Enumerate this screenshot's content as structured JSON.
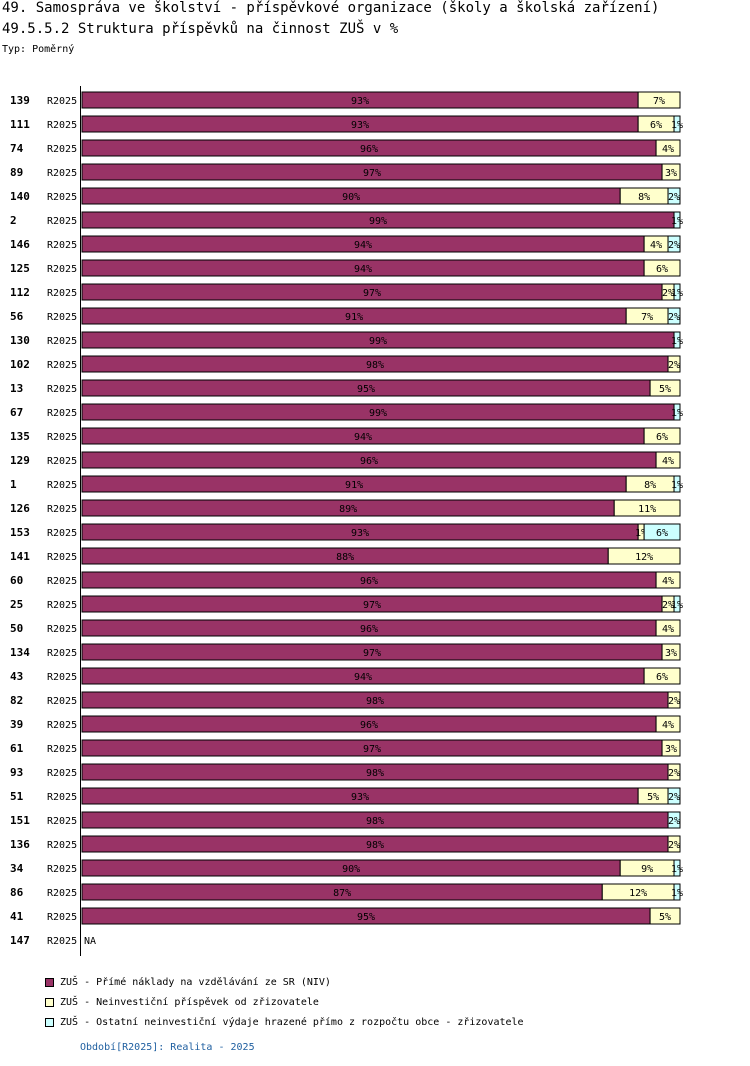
{
  "header": {
    "title": "49. Samospráva ve školství - příspěvkové organizace (školy a školská zařízení)",
    "subtitle": "49.5.5.2 Struktura příspěvků na činnost ZUŠ v %",
    "type_label": "Typ: Poměrný"
  },
  "colors": {
    "niv": "#993366",
    "neinv": "#ffffcc",
    "ostatni": "#ccffff"
  },
  "chart_data": {
    "type": "bar",
    "orientation": "horizontal",
    "stacked": "percent",
    "period_label": "R2025",
    "na_label": "NA",
    "categories": [
      "139",
      "111",
      "74",
      "89",
      "140",
      "2",
      "146",
      "125",
      "112",
      "56",
      "130",
      "102",
      "13",
      "67",
      "135",
      "129",
      "1",
      "126",
      "153",
      "141",
      "60",
      "25",
      "50",
      "134",
      "43",
      "82",
      "39",
      "61",
      "93",
      "51",
      "151",
      "136",
      "34",
      "86",
      "41",
      "147"
    ],
    "series": [
      {
        "name": "ZUŠ - Přímé náklady na vzdělávání ze SR (NIV)",
        "color_key": "niv",
        "values": [
          93,
          93,
          96,
          97,
          90,
          99,
          94,
          94,
          97,
          91,
          99,
          98,
          95,
          99,
          94,
          96,
          91,
          89,
          93,
          88,
          96,
          97,
          96,
          97,
          94,
          98,
          96,
          97,
          98,
          93,
          98,
          98,
          90,
          87,
          95,
          null
        ]
      },
      {
        "name": "ZUŠ - Neinvestiční příspěvek od zřizovatele",
        "color_key": "neinv",
        "values": [
          7,
          6,
          4,
          3,
          8,
          0,
          4,
          6,
          2,
          7,
          0,
          2,
          5,
          0,
          6,
          4,
          8,
          11,
          1,
          12,
          4,
          2,
          4,
          3,
          6,
          2,
          4,
          3,
          2,
          5,
          0,
          2,
          9,
          12,
          5,
          null
        ]
      },
      {
        "name": "ZUŠ - Ostatní neinvestiční výdaje hrazené přímo z rozpočtu obce - zřizovatele",
        "color_key": "ostatni",
        "values": [
          0,
          1,
          0,
          0,
          2,
          1,
          2,
          0,
          1,
          2,
          1,
          0,
          0,
          1,
          0,
          0,
          1,
          0,
          6,
          0,
          0,
          1,
          0,
          0,
          0,
          0,
          0,
          0,
          0,
          2,
          2,
          0,
          1,
          1,
          0,
          null
        ]
      }
    ],
    "xlim": [
      0,
      100
    ]
  },
  "legend": [
    {
      "label": "ZUŠ - Přímé náklady na vzdělávání ze SR (NIV)",
      "color_key": "niv"
    },
    {
      "label": "ZUŠ - Neinvestiční příspěvek od zřizovatele",
      "color_key": "neinv"
    },
    {
      "label": "ZUŠ - Ostatní neinvestiční výdaje hrazené přímo z rozpočtu obce - zřizovatele",
      "color_key": "ostatni"
    }
  ],
  "footer": {
    "period": "Období[R2025]: Realita - 2025"
  }
}
